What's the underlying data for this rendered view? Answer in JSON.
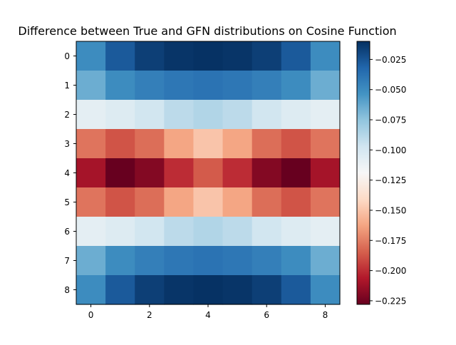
{
  "chart_data": {
    "type": "heatmap",
    "title": "Difference between True and GFN distributions on Cosine Function",
    "xlabel": "",
    "ylabel": "",
    "x_ticks": [
      "0",
      "2",
      "4",
      "6",
      "8"
    ],
    "y_ticks": [
      "0",
      "1",
      "2",
      "3",
      "4",
      "5",
      "6",
      "7",
      "8"
    ],
    "colorbar_ticks": [
      "−0.025",
      "−0.050",
      "−0.075",
      "−0.100",
      "−0.125",
      "−0.150",
      "−0.175",
      "−0.200",
      "−0.225"
    ],
    "colorbar_tick_values": [
      -0.025,
      -0.05,
      -0.075,
      -0.1,
      -0.125,
      -0.15,
      -0.175,
      -0.2,
      -0.225
    ],
    "colormap": "RdBu",
    "vmin": -0.228,
    "vmax": -0.01,
    "rows": 9,
    "cols": 9,
    "values": [
      [
        -0.05,
        -0.027,
        -0.016,
        -0.012,
        -0.011,
        -0.012,
        -0.016,
        -0.027,
        -0.05
      ],
      [
        -0.065,
        -0.05,
        -0.044,
        -0.04,
        -0.038,
        -0.04,
        -0.044,
        -0.05,
        -0.065
      ],
      [
        -0.108,
        -0.104,
        -0.098,
        -0.09,
        -0.086,
        -0.09,
        -0.098,
        -0.104,
        -0.108
      ],
      [
        -0.178,
        -0.188,
        -0.18,
        -0.162,
        -0.15,
        -0.162,
        -0.18,
        -0.188,
        -0.178
      ],
      [
        -0.21,
        -0.228,
        -0.22,
        -0.2,
        -0.186,
        -0.2,
        -0.22,
        -0.228,
        -0.21
      ],
      [
        -0.178,
        -0.188,
        -0.18,
        -0.162,
        -0.15,
        -0.162,
        -0.18,
        -0.188,
        -0.178
      ],
      [
        -0.108,
        -0.104,
        -0.098,
        -0.09,
        -0.086,
        -0.09,
        -0.098,
        -0.104,
        -0.108
      ],
      [
        -0.065,
        -0.05,
        -0.044,
        -0.04,
        -0.038,
        -0.04,
        -0.044,
        -0.05,
        -0.065
      ],
      [
        -0.05,
        -0.027,
        -0.016,
        -0.012,
        -0.011,
        -0.012,
        -0.016,
        -0.027,
        -0.05
      ]
    ]
  }
}
